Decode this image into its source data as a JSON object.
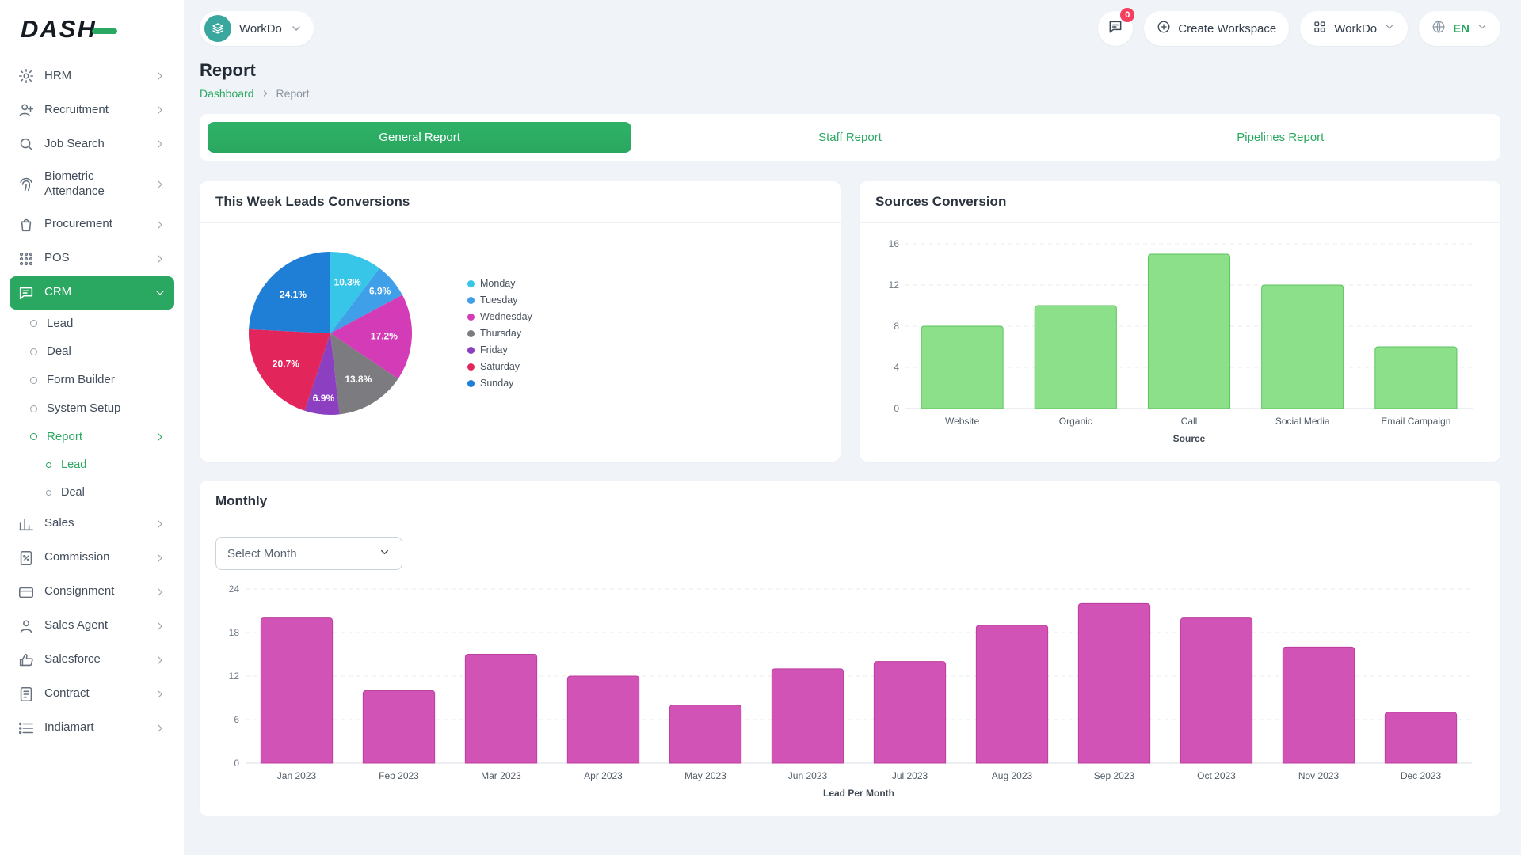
{
  "colors": {
    "primary": "#2aa760",
    "page_bg": "#f0f4f8",
    "teal_avatar": "#3aa79f",
    "badge_red": "#f43f5e"
  },
  "header": {
    "logo_text": "DASH",
    "workspace_chip": "WorkDo",
    "notification_badge": "0",
    "create_workspace": "Create Workspace",
    "app_switcher": "WorkDo",
    "language": "EN"
  },
  "sidebar": {
    "items": [
      {
        "label": "HRM",
        "icon": "hrm",
        "type": "top"
      },
      {
        "label": "Recruitment",
        "icon": "recruitment",
        "type": "top"
      },
      {
        "label": "Job Search",
        "icon": "job-search",
        "type": "top"
      },
      {
        "label": "Biometric Attendance",
        "icon": "biometric",
        "type": "top"
      },
      {
        "label": "Procurement",
        "icon": "procurement",
        "type": "top"
      },
      {
        "label": "POS",
        "icon": "pos",
        "type": "top"
      },
      {
        "label": "CRM",
        "icon": "crm",
        "type": "top",
        "active": true
      },
      {
        "label": "Lead",
        "type": "sub"
      },
      {
        "label": "Deal",
        "type": "sub"
      },
      {
        "label": "Form Builder",
        "type": "sub"
      },
      {
        "label": "System Setup",
        "type": "sub"
      },
      {
        "label": "Report",
        "type": "sub",
        "active": true,
        "chevron": true
      },
      {
        "label": "Lead",
        "type": "sub2",
        "active": true
      },
      {
        "label": "Deal",
        "type": "sub2"
      },
      {
        "label": "Sales",
        "icon": "sales",
        "type": "top"
      },
      {
        "label": "Commission",
        "icon": "commission",
        "type": "top"
      },
      {
        "label": "Consignment",
        "icon": "consignment",
        "type": "top"
      },
      {
        "label": "Sales Agent",
        "icon": "sales-agent",
        "type": "top"
      },
      {
        "label": "Salesforce",
        "icon": "salesforce",
        "type": "top"
      },
      {
        "label": "Contract",
        "icon": "contract",
        "type": "top"
      },
      {
        "label": "Indiamart",
        "icon": "indiamart",
        "type": "top"
      }
    ]
  },
  "page": {
    "title": "Report",
    "breadcrumb": [
      "Dashboard",
      "Report"
    ]
  },
  "tabs": [
    {
      "label": "General Report",
      "active": true
    },
    {
      "label": "Staff Report",
      "active": false
    },
    {
      "label": "Pipelines Report",
      "active": false
    }
  ],
  "monthly": {
    "select_placeholder": "Select Month"
  },
  "chart_data": [
    {
      "type": "pie",
      "title": "This Week Leads Conversions",
      "labels": [
        "Monday",
        "Tuesday",
        "Wednesday",
        "Thursday",
        "Friday",
        "Saturday",
        "Sunday"
      ],
      "values_percent": [
        10.3,
        6.9,
        17.2,
        13.8,
        6.9,
        20.7,
        24.1
      ],
      "colors": [
        "#38c6e8",
        "#3f9fe8",
        "#d43bb7",
        "#7c7c80",
        "#8c3fc0",
        "#e2265b",
        "#1f7ed6"
      ],
      "legend_position": "right"
    },
    {
      "type": "bar",
      "title": "Sources Conversion",
      "categories": [
        "Website",
        "Organic",
        "Call",
        "Social Media",
        "Email Campaign"
      ],
      "values": [
        8,
        10,
        15,
        12,
        6
      ],
      "xlabel": "Source",
      "ylim": [
        0,
        16
      ],
      "yticks": [
        0,
        4,
        8,
        12,
        16
      ],
      "bar_color": "#8ce08a",
      "bar_border": "#5ec25e",
      "grid": "dashed horizontal"
    },
    {
      "type": "bar",
      "title": "Monthly",
      "categories": [
        "Jan 2023",
        "Feb 2023",
        "Mar 2023",
        "Apr 2023",
        "May 2023",
        "Jun 2023",
        "Jul 2023",
        "Aug 2023",
        "Sep 2023",
        "Oct 2023",
        "Nov 2023",
        "Dec 2023"
      ],
      "values": [
        20,
        10,
        15,
        12,
        8,
        13,
        14,
        19,
        22,
        20,
        16,
        7
      ],
      "xlabel": "Lead Per Month",
      "ylim": [
        0,
        24
      ],
      "yticks": [
        0,
        6,
        12,
        18,
        24
      ],
      "bar_color": "#d153b5",
      "bar_border": "#bc3f9f",
      "grid": "dashed horizontal"
    }
  ]
}
